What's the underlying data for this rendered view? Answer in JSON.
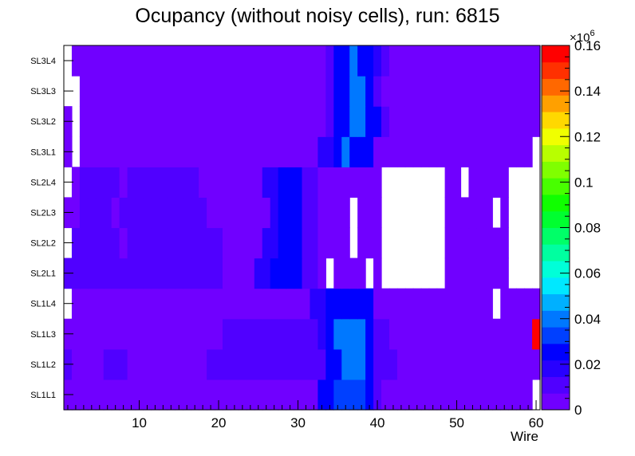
{
  "chart_data": {
    "type": "heatmap",
    "title": "Ocupancy (without noisy cells), run: 6815",
    "xlabel": "Wire",
    "ylabel": "",
    "xlim": [
      0.5,
      60.5
    ],
    "x_ticks": [
      10,
      20,
      30,
      40,
      50,
      60
    ],
    "y_categories": [
      "SL1L1",
      "SL1L2",
      "SL1L3",
      "SL1L4",
      "SL2L1",
      "SL2L2",
      "SL2L3",
      "SL2L4",
      "SL3L1",
      "SL3L2",
      "SL3L3",
      "SL3L4"
    ],
    "z_exponent_label": "×10",
    "z_exponent_power": "6",
    "z_range": [
      0,
      0.16
    ],
    "z_ticks": [
      "0",
      "0.02",
      "0.04",
      "0.06",
      "0.08",
      "0.1",
      "0.12",
      "0.14",
      "0.16"
    ],
    "palette": [
      "#7000ff",
      "#5000ff",
      "#2800ff",
      "#0000ff",
      "#0040ff",
      "#0078ff",
      "#00b0ff",
      "#00e8ff",
      "#00ffd8",
      "#00ffa0",
      "#00ff68",
      "#00ff30",
      "#10ff00",
      "#48ff00",
      "#80ff00",
      "#b8ff00",
      "#f0ff00",
      "#ffd800",
      "#ffa000",
      "#ff6800",
      "#ff3000",
      "#ff0000"
    ],
    "rows": [
      {
        "label": "SL1L1",
        "base": 0.0045,
        "segments": [
          [
            33,
            34,
            0.022
          ],
          [
            35,
            38,
            0.033
          ],
          [
            39,
            39,
            0.022
          ],
          [
            40,
            40,
            0.011
          ]
        ],
        "empty": [
          60
        ]
      },
      {
        "label": "SL1L2",
        "base": 0.0045,
        "segments": [
          [
            1,
            1,
            0.011
          ],
          [
            6,
            8,
            0.011
          ],
          [
            19,
            33,
            0.011
          ],
          [
            34,
            35,
            0.022
          ],
          [
            36,
            38,
            0.038
          ],
          [
            39,
            39,
            0.022
          ],
          [
            40,
            42,
            0.011
          ]
        ],
        "empty": []
      },
      {
        "label": "SL1L3",
        "base": 0.0045,
        "segments": [
          [
            21,
            33,
            0.011
          ],
          [
            33,
            33,
            0.016
          ],
          [
            34,
            34,
            0.027
          ],
          [
            35,
            38,
            0.038
          ],
          [
            39,
            39,
            0.027
          ],
          [
            40,
            41,
            0.011
          ]
        ],
        "empty": [],
        "hot": [
          [
            60,
            0.16
          ]
        ]
      },
      {
        "label": "SL1L4",
        "base": 0.0045,
        "segments": [
          [
            32,
            33,
            0.016
          ],
          [
            34,
            39,
            0.027
          ]
        ],
        "empty": [
          1,
          55
        ]
      },
      {
        "label": "SL2L1",
        "base": 0.0045,
        "segments": [
          [
            1,
            20,
            0.011
          ],
          [
            25,
            26,
            0.016
          ],
          [
            27,
            30,
            0.027
          ],
          [
            31,
            32,
            0.011
          ]
        ],
        "empty": [
          34,
          39,
          41,
          42,
          43,
          44,
          45,
          46,
          47,
          48,
          57,
          58,
          59,
          60
        ]
      },
      {
        "label": "SL2L2",
        "base": 0.0045,
        "segments": [
          [
            2,
            7,
            0.011
          ],
          [
            9,
            20,
            0.011
          ],
          [
            26,
            27,
            0.016
          ],
          [
            28,
            30,
            0.027
          ],
          [
            31,
            32,
            0.011
          ]
        ],
        "empty": [
          1,
          37,
          41,
          42,
          43,
          44,
          45,
          46,
          47,
          48,
          57,
          58,
          59,
          60
        ]
      },
      {
        "label": "SL2L3",
        "base": 0.0045,
        "segments": [
          [
            3,
            6,
            0.011
          ],
          [
            8,
            18,
            0.011
          ],
          [
            27,
            27,
            0.016
          ],
          [
            28,
            30,
            0.027
          ],
          [
            31,
            32,
            0.011
          ]
        ],
        "empty": [
          37,
          41,
          42,
          43,
          44,
          45,
          46,
          47,
          48,
          55,
          57,
          58,
          59,
          60
        ]
      },
      {
        "label": "SL2L4",
        "base": 0.0045,
        "segments": [
          [
            3,
            7,
            0.011
          ],
          [
            9,
            17,
            0.011
          ],
          [
            26,
            27,
            0.016
          ],
          [
            28,
            28,
            0.022
          ],
          [
            29,
            30,
            0.027
          ],
          [
            31,
            32,
            0.011
          ]
        ],
        "empty": [
          1,
          41,
          42,
          43,
          44,
          45,
          46,
          47,
          48,
          51,
          57,
          58,
          59,
          60
        ]
      },
      {
        "label": "SL3L1",
        "base": 0.0045,
        "segments": [
          [
            33,
            34,
            0.016
          ],
          [
            35,
            35,
            0.027
          ],
          [
            36,
            36,
            0.038
          ],
          [
            37,
            37,
            0.027
          ],
          [
            38,
            39,
            0.022
          ]
        ],
        "empty": [
          2,
          60
        ]
      },
      {
        "label": "SL3L2",
        "base": 0.0045,
        "segments": [
          [
            34,
            34,
            0.011
          ],
          [
            35,
            36,
            0.027
          ],
          [
            37,
            38,
            0.038
          ],
          [
            39,
            40,
            0.022
          ],
          [
            41,
            41,
            0.011
          ]
        ],
        "empty": [
          2
        ]
      },
      {
        "label": "SL3L3",
        "base": 0.0045,
        "segments": [
          [
            34,
            34,
            0.011
          ],
          [
            35,
            36,
            0.027
          ],
          [
            37,
            38,
            0.038
          ],
          [
            39,
            39,
            0.027
          ],
          [
            40,
            40,
            0.011
          ]
        ],
        "empty": [
          1,
          2
        ]
      },
      {
        "label": "SL3L4",
        "base": 0.0045,
        "segments": [
          [
            34,
            34,
            0.011
          ],
          [
            35,
            36,
            0.027
          ],
          [
            37,
            37,
            0.038
          ],
          [
            38,
            39,
            0.027
          ],
          [
            40,
            40,
            0.016
          ],
          [
            41,
            41,
            0.011
          ]
        ],
        "empty": [
          1
        ]
      }
    ]
  }
}
